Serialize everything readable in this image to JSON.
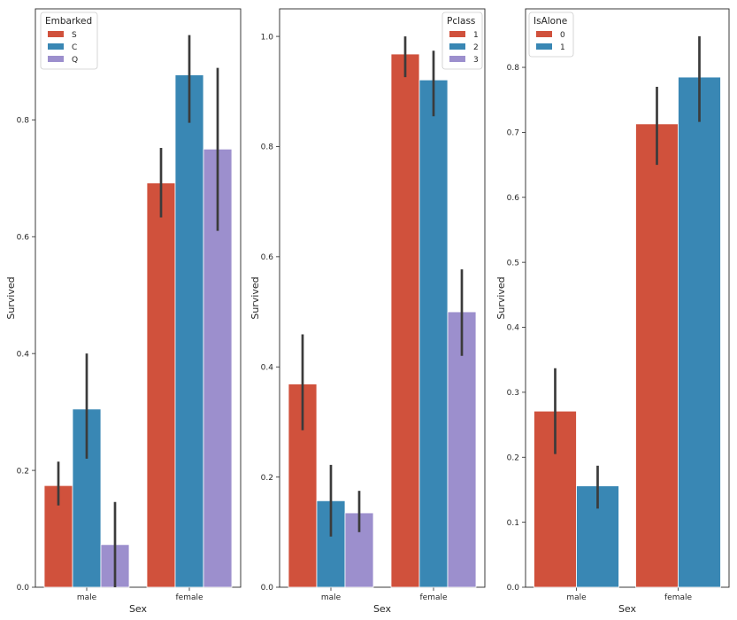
{
  "colors": {
    "palette": [
      "#d0513c",
      "#3987b4",
      "#9c8fcd"
    ],
    "errorbar": "#3b3b3b",
    "axis": "#262626",
    "background": "#ffffff"
  },
  "chart_data": [
    {
      "type": "bar",
      "categories": [
        "male",
        "female"
      ],
      "xlabel": "Sex",
      "ylabel": "Survived",
      "ylim": [
        0,
        0.99
      ],
      "yticks": [
        0.0,
        0.2,
        0.4,
        0.6,
        0.8
      ],
      "ytick_labels": [
        "0.0",
        "0.2",
        "0.4",
        "0.6",
        "0.8"
      ],
      "legend": {
        "title": "Embarked",
        "position": "top-left"
      },
      "series": [
        {
          "name": "S",
          "values": [
            0.174,
            0.692
          ],
          "ci": [
            [
              0.14,
              0.215
            ],
            [
              0.633,
              0.752
            ]
          ]
        },
        {
          "name": "C",
          "values": [
            0.305,
            0.877
          ],
          "ci": [
            [
              0.22,
              0.4
            ],
            [
              0.795,
              0.945
            ]
          ]
        },
        {
          "name": "Q",
          "values": [
            0.073,
            0.75
          ],
          "ci": [
            [
              0.0,
              0.146
            ],
            [
              0.61,
              0.889
            ]
          ]
        }
      ]
    },
    {
      "type": "bar",
      "categories": [
        "male",
        "female"
      ],
      "xlabel": "Sex",
      "ylabel": "Survived",
      "ylim": [
        0,
        1.05
      ],
      "yticks": [
        0.0,
        0.2,
        0.4,
        0.6,
        0.8,
        1.0
      ],
      "ytick_labels": [
        "0.0",
        "0.2",
        "0.4",
        "0.6",
        "0.8",
        "1.0"
      ],
      "legend": {
        "title": "Pclass",
        "position": "top-right"
      },
      "series": [
        {
          "name": "1",
          "values": [
            0.369,
            0.968
          ],
          "ci": [
            [
              0.285,
              0.459
            ],
            [
              0.926,
              1.0
            ]
          ]
        },
        {
          "name": "2",
          "values": [
            0.157,
            0.921
          ],
          "ci": [
            [
              0.092,
              0.222
            ],
            [
              0.855,
              0.974
            ]
          ]
        },
        {
          "name": "3",
          "values": [
            0.135,
            0.5
          ],
          "ci": [
            [
              0.1,
              0.175
            ],
            [
              0.42,
              0.577
            ]
          ]
        }
      ]
    },
    {
      "type": "bar",
      "categories": [
        "male",
        "female"
      ],
      "xlabel": "Sex",
      "ylabel": "Survived",
      "ylim": [
        0,
        0.89
      ],
      "yticks": [
        0.0,
        0.1,
        0.2,
        0.3,
        0.4,
        0.5,
        0.6,
        0.7,
        0.8
      ],
      "ytick_labels": [
        "0.0",
        "0.1",
        "0.2",
        "0.3",
        "0.4",
        "0.5",
        "0.6",
        "0.7",
        "0.8"
      ],
      "legend": {
        "title": "IsAlone",
        "position": "top-left"
      },
      "series": [
        {
          "name": "0",
          "values": [
            0.271,
            0.713
          ],
          "ci": [
            [
              0.205,
              0.337
            ],
            [
              0.65,
              0.77
            ]
          ]
        },
        {
          "name": "1",
          "values": [
            0.156,
            0.785
          ],
          "ci": [
            [
              0.121,
              0.187
            ],
            [
              0.716,
              0.848
            ]
          ]
        }
      ]
    }
  ]
}
